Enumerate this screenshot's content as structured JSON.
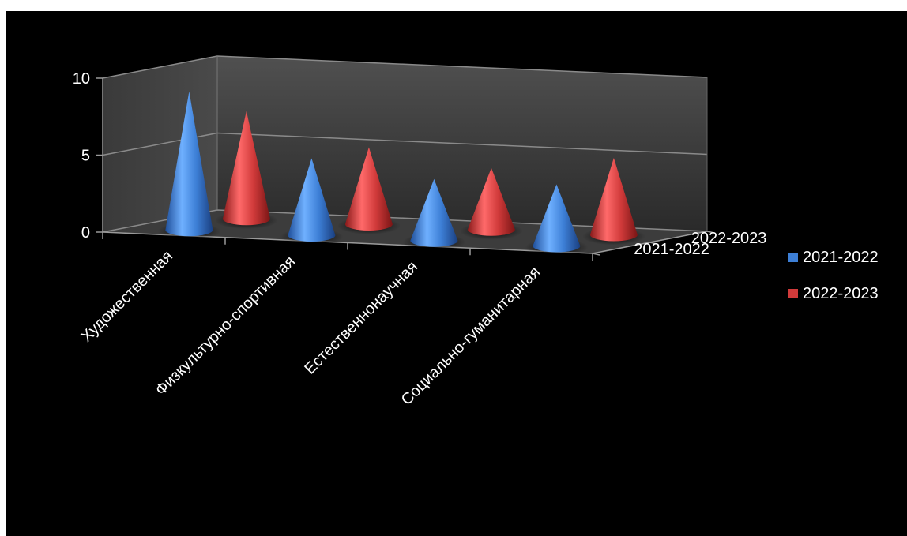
{
  "chart_data": {
    "type": "bar",
    "subtype": "3d-cone",
    "categories": [
      "Художественная",
      "Физкультурно-спортивная",
      "Естественнонаучная",
      "Социально-гуманитарная"
    ],
    "series": [
      {
        "name": "2021-2022",
        "values": [
          9,
          5,
          4,
          4
        ],
        "color": "#3d7fd6"
      },
      {
        "name": "2022-2023",
        "values": [
          7,
          5,
          4,
          5
        ],
        "color": "#d03a3a"
      }
    ],
    "yticks": [
      "0",
      "5",
      "10"
    ],
    "ylim": [
      0,
      10
    ],
    "depth_labels": [
      "2021-2022",
      "2022-2023"
    ],
    "legend": {
      "position": "right",
      "items": [
        "2021-2022",
        "2022-2023"
      ]
    },
    "grid": true,
    "background": "#000000"
  }
}
